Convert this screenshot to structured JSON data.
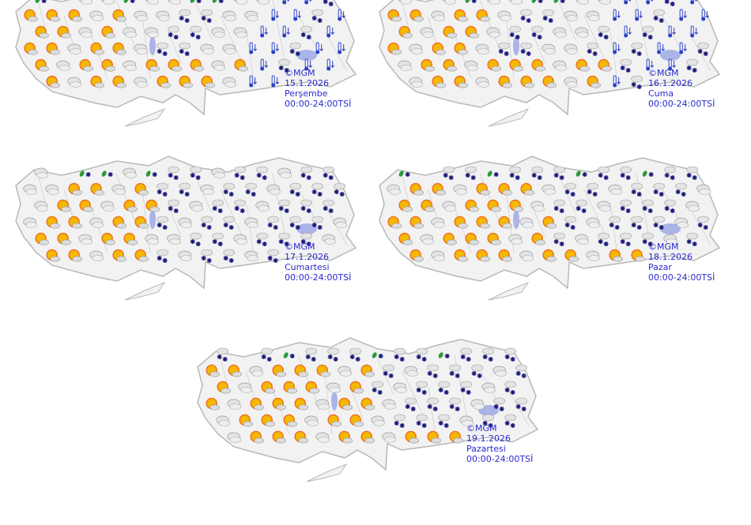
{
  "maps": [
    {
      "copyright": "©MGM",
      "date": "15.1.2026",
      "day": "Perşembe",
      "period": "00:00-24:00TSİ",
      "pattern": "cold-east"
    },
    {
      "copyright": "©MGM",
      "date": "16.1.2026",
      "day": "Cuma",
      "period": "00:00-24:00TSİ",
      "pattern": "cold-east"
    },
    {
      "copyright": "©MGM",
      "date": "17.1.2026",
      "day": "Cumartesi",
      "period": "00:00-24:00TSİ",
      "pattern": "snow-east"
    },
    {
      "copyright": "©MGM",
      "date": "18.1.2026",
      "day": "Pazar",
      "period": "00:00-24:00TSİ",
      "pattern": "snow-north-east"
    },
    {
      "copyright": "©MGM",
      "date": "19.1.2026",
      "day": "Pazartesi",
      "period": "00:00-24:00TSİ",
      "pattern": "snow-north-east"
    }
  ],
  "icons": [
    "partly-cloudy-sun-icon",
    "cloudy-icon",
    "snow-icon",
    "sleet-icon",
    "cold-thermometer-icon"
  ],
  "colors": {
    "label": "#2a2acc",
    "land": "#f2f2f2",
    "border": "#b8b8b8",
    "lake": "#aab4e8",
    "sun": "#f5b800",
    "snow": "#1a1a7a",
    "sleet": "#2a9a3a",
    "cold": "#2a40c8"
  }
}
